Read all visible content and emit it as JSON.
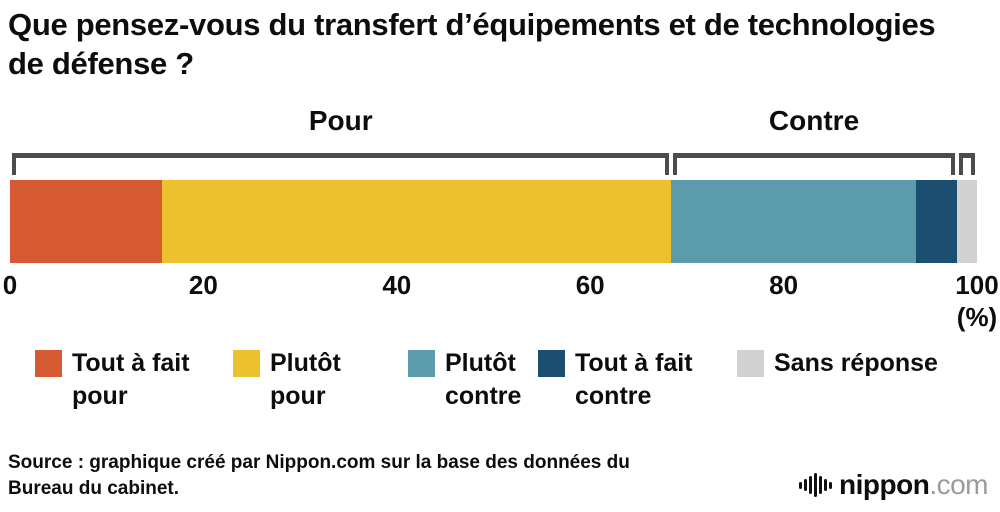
{
  "title": "Que pensez-vous du transfert d’équipements et de technologies de défense ?",
  "chart_data": {
    "type": "bar",
    "stacked": true,
    "orientation": "horizontal",
    "title": "Que pensez-vous du transfert d’équipements et de technologies de défense ?",
    "categories": [
      "Tout à fait pour",
      "Plutôt pour",
      "Plutôt contre",
      "Tout à fait contre",
      "Sans réponse"
    ],
    "values": [
      15.7,
      52.7,
      25.3,
      4.2,
      2.1
    ],
    "colors": [
      "#d65a31",
      "#ecc12d",
      "#5b9bac",
      "#1c4e72",
      "#d1d1d1"
    ],
    "xlim": [
      0,
      100
    ],
    "x_ticks": [
      0,
      20,
      40,
      60,
      80,
      100
    ],
    "unit_label": "(%)",
    "bracket_color": "#4c4c4c",
    "groups": [
      {
        "label": "Pour",
        "start": 0,
        "end": 68.4
      },
      {
        "label": "Contre",
        "start": 68.4,
        "end": 97.9
      },
      {
        "label": "",
        "start": 97.9,
        "end": 100
      }
    ]
  },
  "legend": [
    {
      "line1": "Tout à fait",
      "line2": "pour",
      "color": "#d65a31"
    },
    {
      "line1": "Plutôt",
      "line2": "pour",
      "color": "#ecc12d"
    },
    {
      "line1": "Plutôt",
      "line2": "contre",
      "color": "#5b9bac"
    },
    {
      "line1": "Tout à fait",
      "line2": "contre",
      "color": "#1c4e72"
    },
    {
      "line1": "Sans réponse",
      "line2": "",
      "color": "#d1d1d1"
    }
  ],
  "source": {
    "line1": "Source : graphique créé par Nippon.com sur la base des données du",
    "line2": "Bureau du cabinet."
  },
  "logo": {
    "brand": "nippon",
    "suffix": ".com"
  }
}
